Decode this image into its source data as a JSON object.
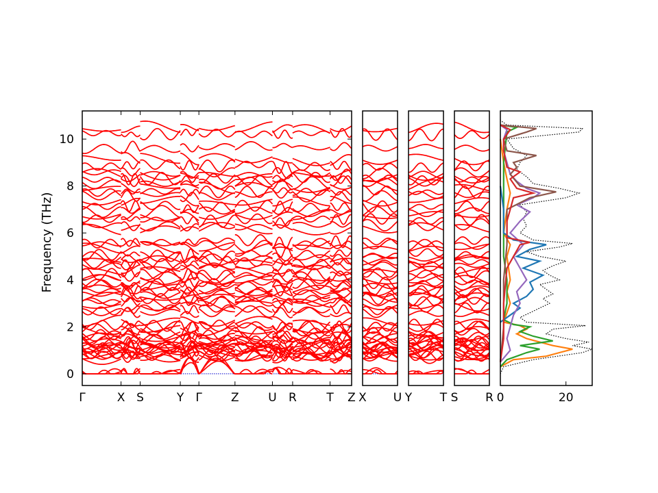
{
  "chart_data": {
    "type": "line",
    "title": "",
    "ylabel": "Frequency (THz)",
    "ylim": [
      -0.5,
      11.2
    ],
    "yticks": [
      0,
      2,
      4,
      6,
      8,
      10
    ],
    "zero_line": 0,
    "colors": {
      "band": "#ff0000",
      "zero_line": "#0000cc",
      "total_dos": "#000000"
    },
    "band_panels": [
      {
        "name": "panel-1",
        "labels": [
          "Γ",
          "X",
          "S",
          "Y",
          "Γ",
          "Z",
          "U",
          "R",
          "T",
          "Z"
        ],
        "positions": [
          0,
          0.144,
          0.215,
          0.364,
          0.433,
          0.567,
          0.706,
          0.781,
          0.92,
          1.0
        ]
      },
      {
        "name": "panel-2",
        "labels": [
          "X",
          "U"
        ],
        "positions": [
          0,
          1
        ]
      },
      {
        "name": "panel-3",
        "labels": [
          "Y",
          "T"
        ],
        "positions": [
          0,
          1
        ]
      },
      {
        "name": "panel-4",
        "labels": [
          "S",
          "R"
        ],
        "positions": [
          0,
          1
        ]
      }
    ],
    "bands_at_gamma": [
      0,
      0,
      0,
      0.68,
      0.72,
      0.78,
      0.83,
      0.9,
      0.95,
      1.0,
      1.05,
      1.1,
      1.15,
      1.2,
      1.25,
      1.3,
      1.38,
      1.45,
      1.55,
      1.62,
      1.72,
      1.85,
      1.98,
      2.08,
      2.22,
      2.6,
      2.75,
      2.95,
      3.05,
      3.15,
      3.25,
      3.4,
      3.5,
      3.62,
      3.75,
      3.85,
      4.0,
      4.12,
      4.25,
      4.4,
      4.55,
      4.7,
      4.82,
      4.95,
      5.1,
      5.35,
      5.5,
      5.62,
      6.15,
      6.3,
      6.55,
      6.75,
      6.9,
      7.1,
      7.35,
      7.6,
      7.78,
      7.95,
      8.15,
      8.3,
      8.45,
      8.55,
      8.85,
      9.15,
      9.65,
      10.25,
      10.45
    ],
    "dos": {
      "xlim": [
        0,
        28
      ],
      "xticks": [
        0,
        20
      ],
      "series": [
        {
          "name": "total",
          "color": "#000000",
          "style": "dotted",
          "points": [
            [
              0.0,
              0
            ],
            [
              0.3,
              1
            ],
            [
              0.6,
              10
            ],
            [
              0.9,
              25
            ],
            [
              1.05,
              28
            ],
            [
              1.2,
              22
            ],
            [
              1.35,
              27
            ],
            [
              1.5,
              20
            ],
            [
              1.7,
              14
            ],
            [
              1.9,
              16
            ],
            [
              2.05,
              26
            ],
            [
              2.2,
              8
            ],
            [
              2.4,
              6
            ],
            [
              2.6,
              9
            ],
            [
              2.8,
              12
            ],
            [
              3.0,
              15
            ],
            [
              3.2,
              13
            ],
            [
              3.4,
              16
            ],
            [
              3.6,
              14
            ],
            [
              3.8,
              12
            ],
            [
              4.0,
              18
            ],
            [
              4.2,
              15
            ],
            [
              4.4,
              13
            ],
            [
              4.6,
              16
            ],
            [
              4.8,
              20
            ],
            [
              5.0,
              12
            ],
            [
              5.2,
              8
            ],
            [
              5.4,
              18
            ],
            [
              5.55,
              22
            ],
            [
              5.7,
              10
            ],
            [
              6.0,
              6
            ],
            [
              6.3,
              8
            ],
            [
              6.6,
              7
            ],
            [
              6.9,
              8
            ],
            [
              7.2,
              6
            ],
            [
              7.5,
              20
            ],
            [
              7.7,
              24
            ],
            [
              7.9,
              18
            ],
            [
              8.1,
              10
            ],
            [
              8.4,
              8
            ],
            [
              8.7,
              5
            ],
            [
              9.0,
              6
            ],
            [
              9.3,
              8
            ],
            [
              9.6,
              4
            ],
            [
              10.0,
              2
            ],
            [
              10.3,
              24
            ],
            [
              10.45,
              25
            ],
            [
              10.6,
              2
            ],
            [
              10.8,
              0
            ]
          ]
        },
        {
          "name": "orange",
          "color": "#ff7f0e",
          "style": "solid",
          "points": [
            [
              0.3,
              0
            ],
            [
              0.6,
              4
            ],
            [
              0.75,
              14
            ],
            [
              0.9,
              18
            ],
            [
              1.05,
              22
            ],
            [
              1.2,
              16
            ],
            [
              1.35,
              12
            ],
            [
              1.5,
              8
            ],
            [
              1.7,
              5
            ],
            [
              1.9,
              8
            ],
            [
              2.05,
              6
            ],
            [
              2.2,
              1
            ],
            [
              2.6,
              2
            ],
            [
              3.0,
              3
            ],
            [
              3.5,
              2
            ],
            [
              4.0,
              3
            ],
            [
              5.0,
              2
            ],
            [
              5.5,
              3
            ],
            [
              6.0,
              1
            ],
            [
              7.0,
              2
            ],
            [
              7.7,
              3
            ],
            [
              8.3,
              2
            ],
            [
              9.0,
              1
            ],
            [
              10.0,
              0
            ]
          ]
        },
        {
          "name": "green",
          "color": "#2ca02c",
          "style": "solid",
          "points": [
            [
              0.3,
              0
            ],
            [
              0.6,
              2
            ],
            [
              0.9,
              8
            ],
            [
              1.05,
              12
            ],
            [
              1.2,
              6
            ],
            [
              1.4,
              16
            ],
            [
              1.6,
              10
            ],
            [
              1.8,
              6
            ],
            [
              2.0,
              9
            ],
            [
              2.1,
              4
            ],
            [
              2.3,
              1
            ],
            [
              3.0,
              2
            ],
            [
              4.0,
              2
            ],
            [
              5.0,
              1
            ],
            [
              6.0,
              1
            ],
            [
              7.0,
              1
            ],
            [
              8.0,
              1
            ],
            [
              9.0,
              1
            ],
            [
              10.3,
              2
            ],
            [
              10.5,
              5
            ],
            [
              10.6,
              0
            ]
          ]
        },
        {
          "name": "blue",
          "color": "#1f77b4",
          "style": "solid",
          "points": [
            [
              2.2,
              0
            ],
            [
              2.5,
              3
            ],
            [
              2.8,
              6
            ],
            [
              3.0,
              4
            ],
            [
              3.3,
              8
            ],
            [
              3.6,
              10
            ],
            [
              3.9,
              9
            ],
            [
              4.2,
              13
            ],
            [
              4.5,
              7
            ],
            [
              4.8,
              12
            ],
            [
              5.0,
              5
            ],
            [
              5.3,
              9
            ],
            [
              5.5,
              14
            ],
            [
              5.7,
              4
            ],
            [
              6.0,
              1
            ],
            [
              7.0,
              1
            ],
            [
              8.0,
              0
            ]
          ]
        },
        {
          "name": "purple",
          "color": "#9467bd",
          "style": "solid",
          "points": [
            [
              0.5,
              0
            ],
            [
              1.0,
              3
            ],
            [
              1.5,
              2
            ],
            [
              2.5,
              4
            ],
            [
              3.0,
              6
            ],
            [
              3.5,
              5
            ],
            [
              4.0,
              8
            ],
            [
              4.5,
              6
            ],
            [
              5.0,
              4
            ],
            [
              5.5,
              7
            ],
            [
              6.0,
              3
            ],
            [
              6.5,
              6
            ],
            [
              6.9,
              9
            ],
            [
              7.2,
              5
            ],
            [
              7.5,
              10
            ],
            [
              7.7,
              12
            ],
            [
              7.9,
              8
            ],
            [
              8.2,
              5
            ],
            [
              8.5,
              3
            ],
            [
              9.0,
              2
            ],
            [
              9.5,
              1
            ],
            [
              10.0,
              1
            ],
            [
              10.4,
              2
            ],
            [
              10.6,
              0
            ]
          ]
        },
        {
          "name": "brown",
          "color": "#8c564b",
          "style": "solid",
          "points": [
            [
              0.5,
              0
            ],
            [
              2.0,
              1
            ],
            [
              4.0,
              1
            ],
            [
              5.5,
              2
            ],
            [
              7.0,
              2
            ],
            [
              7.5,
              9
            ],
            [
              7.75,
              17
            ],
            [
              8.0,
              6
            ],
            [
              8.5,
              3
            ],
            [
              8.8,
              5
            ],
            [
              9.0,
              4
            ],
            [
              9.3,
              11
            ],
            [
              9.5,
              2
            ],
            [
              10.0,
              1
            ],
            [
              10.3,
              8
            ],
            [
              10.45,
              11
            ],
            [
              10.6,
              0
            ]
          ]
        },
        {
          "name": "red",
          "color": "#d62728",
          "style": "solid",
          "points": [
            [
              0.5,
              0
            ],
            [
              1.5,
              1
            ],
            [
              3.0,
              1
            ],
            [
              4.5,
              2
            ],
            [
              5.5,
              6
            ],
            [
              5.6,
              9
            ],
            [
              5.8,
              2
            ],
            [
              6.5,
              2
            ],
            [
              7.5,
              4
            ],
            [
              7.7,
              10
            ],
            [
              7.9,
              5
            ],
            [
              8.3,
              3
            ],
            [
              8.6,
              6
            ],
            [
              8.8,
              2
            ],
            [
              9.5,
              1
            ],
            [
              10.0,
              1
            ],
            [
              10.4,
              3
            ],
            [
              10.6,
              0
            ]
          ]
        }
      ]
    }
  }
}
